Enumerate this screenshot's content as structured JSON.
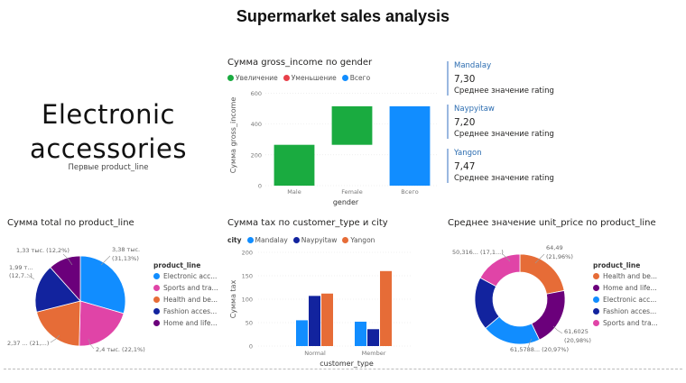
{
  "page": {
    "title": "Supermarket sales analysis"
  },
  "card": {
    "value_line1": "Electronic",
    "value_line2": "accessories",
    "label": "Первые product_line"
  },
  "waterfall": {
    "title": "Сумма gross_income по gender",
    "legend": [
      {
        "label": "Увеличение",
        "color": "#1aab40"
      },
      {
        "label": "Уменьшение",
        "color": "#e8404a"
      },
      {
        "label": "Всего",
        "color": "#118dff"
      }
    ],
    "ylabel": "Сумма gross_income",
    "xlabel": "gender",
    "yticks": [
      "0",
      "200",
      "400",
      "600"
    ],
    "categories": [
      "Male",
      "Female",
      "Всего"
    ]
  },
  "multirow_cards": [
    {
      "name": "Mandalay",
      "value": "7,30",
      "caption": "Среднее значение rating"
    },
    {
      "name": "Naypyitaw",
      "value": "7,20",
      "caption": "Среднее значение rating"
    },
    {
      "name": "Yangon",
      "value": "7,47",
      "caption": "Среднее значение rating"
    }
  ],
  "pie": {
    "title": "Сумма total по product_line",
    "legend_title": "product_line",
    "legend": [
      {
        "label": "Electronic acc...",
        "color": "#118dff"
      },
      {
        "label": "Sports and tra...",
        "color": "#e044a7"
      },
      {
        "label": "Health and be...",
        "color": "#e66c37"
      },
      {
        "label": "Fashion acces...",
        "color": "#12239e"
      },
      {
        "label": "Home and life...",
        "color": "#6b007b"
      }
    ],
    "labels": {
      "l1": "1,33 тыс. (12,2%)",
      "l2a": "1,99 т...",
      "l2b": "(12,7...)",
      "l3a": "3,38 тыс.",
      "l3b": "(31,13%)",
      "l4": "2,37 ... (21,...)",
      "l5": "2,4 тыс. (22,1%)"
    }
  },
  "bars": {
    "title": "Сумма tax по customer_type и city",
    "legend_title": "city",
    "legend": [
      {
        "label": "Mandalay",
        "color": "#118dff"
      },
      {
        "label": "Naypyitaw",
        "color": "#12239e"
      },
      {
        "label": "Yangon",
        "color": "#e66c37"
      }
    ],
    "ylabel": "Сумма tax",
    "xlabel": "customer_type",
    "yticks": [
      "0",
      "50",
      "100",
      "150",
      "200"
    ],
    "categories": [
      "Normal",
      "Member"
    ]
  },
  "donut": {
    "title": "Среднее значение unit_price по product_line",
    "legend_title": "product_line",
    "legend": [
      {
        "label": "Health and be...",
        "color": "#e66c37"
      },
      {
        "label": "Home and life...",
        "color": "#6b007b"
      },
      {
        "label": "Electronic acc...",
        "color": "#118dff"
      },
      {
        "label": "Fashion acces...",
        "color": "#12239e"
      },
      {
        "label": "Sports and tra...",
        "color": "#e044a7"
      }
    ],
    "labels": {
      "l1": "50,316... (17,1...)",
      "l2a": "64,49",
      "l2b": "(21,96%)",
      "l3a": "61,6025",
      "l3b": "(20,98%)",
      "l4": "61,5788... (20,97%)"
    }
  },
  "chart_data": [
    {
      "type": "bar",
      "subtype": "waterfall",
      "title": "Сумма gross_income по gender",
      "xlabel": "gender",
      "ylabel": "Сумма gross_income",
      "categories": [
        "Male",
        "Female",
        "Всего"
      ],
      "steps": [
        {
          "category": "Male",
          "start": 0,
          "end": 265,
          "kind": "Увеличение"
        },
        {
          "category": "Female",
          "start": 265,
          "end": 515,
          "kind": "Увеличение"
        },
        {
          "category": "Всего",
          "start": 0,
          "end": 515,
          "kind": "Всего"
        }
      ],
      "ylim": [
        0,
        620
      ],
      "legend_position": "top-left"
    },
    {
      "type": "pie",
      "title": "Сумма total по product_line",
      "slices": [
        {
          "name": "Electronic accessories",
          "value": 3380,
          "percent": 31.13,
          "label": "3,38 тыс. (31,13%)"
        },
        {
          "name": "Sports and travel",
          "value": 2400,
          "percent": 22.1,
          "label": "2,4 тыс. (22,1%)"
        },
        {
          "name": "Health and beauty",
          "value": 2370,
          "percent": 21.8,
          "label": "2,37 ... (21,...)"
        },
        {
          "name": "Fashion accessories",
          "value": 1990,
          "percent": 12.7,
          "label": "1,99 т... (12,7...)"
        },
        {
          "name": "Home and lifestyle",
          "value": 1330,
          "percent": 12.2,
          "label": "1,33 тыс. (12,2%)"
        }
      ],
      "legend_position": "right"
    },
    {
      "type": "bar",
      "title": "Сумма tax по customer_type и city",
      "xlabel": "customer_type",
      "ylabel": "Сумма tax",
      "categories": [
        "Normal",
        "Member"
      ],
      "series": [
        {
          "name": "Mandalay",
          "values": [
            55,
            52
          ]
        },
        {
          "name": "Naypyitaw",
          "values": [
            107,
            36
          ]
        },
        {
          "name": "Yangon",
          "values": [
            112,
            160
          ]
        }
      ],
      "ylim": [
        0,
        200
      ],
      "legend_position": "top-left"
    },
    {
      "type": "pie",
      "subtype": "donut",
      "title": "Среднее значение unit_price по product_line",
      "slices": [
        {
          "name": "Health and beauty",
          "value": 64.49,
          "percent": 21.96,
          "label": "64,49 (21,96%)"
        },
        {
          "name": "Home and lifestyle",
          "value": 61.6025,
          "percent": 20.98,
          "label": "61,6025 (20,98%)"
        },
        {
          "name": "Electronic accessories",
          "value": 61.5788,
          "percent": 20.97,
          "label": "61,5788... (20,97%)"
        },
        {
          "name": "Fashion accessories",
          "value": 56.0,
          "percent": 18.99
        },
        {
          "name": "Sports and travel",
          "value": 50.316,
          "percent": 17.1,
          "label": "50,316... (17,1...)"
        }
      ],
      "legend_position": "right"
    }
  ]
}
